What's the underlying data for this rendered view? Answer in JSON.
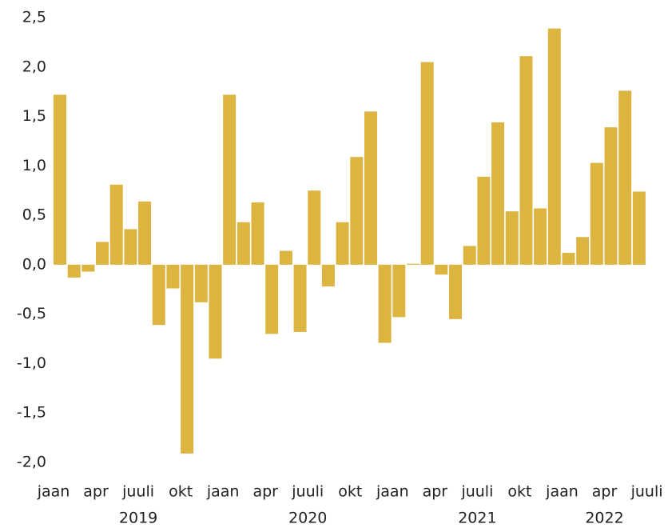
{
  "chart_data": {
    "type": "bar",
    "color": "#dcb541",
    "grid": false,
    "values": [
      1.72,
      -0.13,
      -0.07,
      0.23,
      0.81,
      0.36,
      0.64,
      -0.61,
      -0.24,
      -1.91,
      -0.38,
      -0.95,
      1.72,
      0.43,
      0.63,
      -0.7,
      0.14,
      -0.68,
      0.75,
      -0.22,
      0.43,
      1.09,
      1.55,
      -0.79,
      -0.53,
      0.01,
      2.05,
      -0.1,
      -0.55,
      0.19,
      0.89,
      1.44,
      0.54,
      2.11,
      0.57,
      2.39,
      0.12,
      0.28,
      1.03,
      1.39,
      1.76,
      0.74
    ],
    "ylim": [
      -2.0,
      2.5
    ],
    "yticks": [
      {
        "value": 2.5,
        "label": "2,5"
      },
      {
        "value": 2.0,
        "label": "2,0"
      },
      {
        "value": 1.5,
        "label": "1,5"
      },
      {
        "value": 1.0,
        "label": "1,0"
      },
      {
        "value": 0.5,
        "label": "0,5"
      },
      {
        "value": 0.0,
        "label": "0,0"
      },
      {
        "value": -0.5,
        "label": "-0,5"
      },
      {
        "value": -1.0,
        "label": "-1,0"
      },
      {
        "value": -1.5,
        "label": "-1,5"
      },
      {
        "value": -2.0,
        "label": "-2,0"
      }
    ],
    "xticks": [
      {
        "value": 0,
        "label": "jaan"
      },
      {
        "value": 3,
        "label": "apr"
      },
      {
        "value": 6,
        "label": "juuli"
      },
      {
        "value": 9,
        "label": "okt"
      },
      {
        "value": 12,
        "label": "jaan"
      },
      {
        "value": 15,
        "label": "apr"
      },
      {
        "value": 18,
        "label": "juuli"
      },
      {
        "value": 21,
        "label": "okt"
      },
      {
        "value": 24,
        "label": "jaan"
      },
      {
        "value": 27,
        "label": "apr"
      },
      {
        "value": 30,
        "label": "juuli"
      },
      {
        "value": 33,
        "label": "okt"
      },
      {
        "value": 36,
        "label": "jaan"
      },
      {
        "value": 39,
        "label": "apr"
      },
      {
        "value": 42,
        "label": "juuli"
      }
    ],
    "year_groups": [
      {
        "label": "2019",
        "start": 0,
        "end": 12
      },
      {
        "label": "2020",
        "start": 12,
        "end": 24
      },
      {
        "label": "2021",
        "start": 24,
        "end": 36
      },
      {
        "label": "2022",
        "start": 36,
        "end": 42
      }
    ]
  }
}
